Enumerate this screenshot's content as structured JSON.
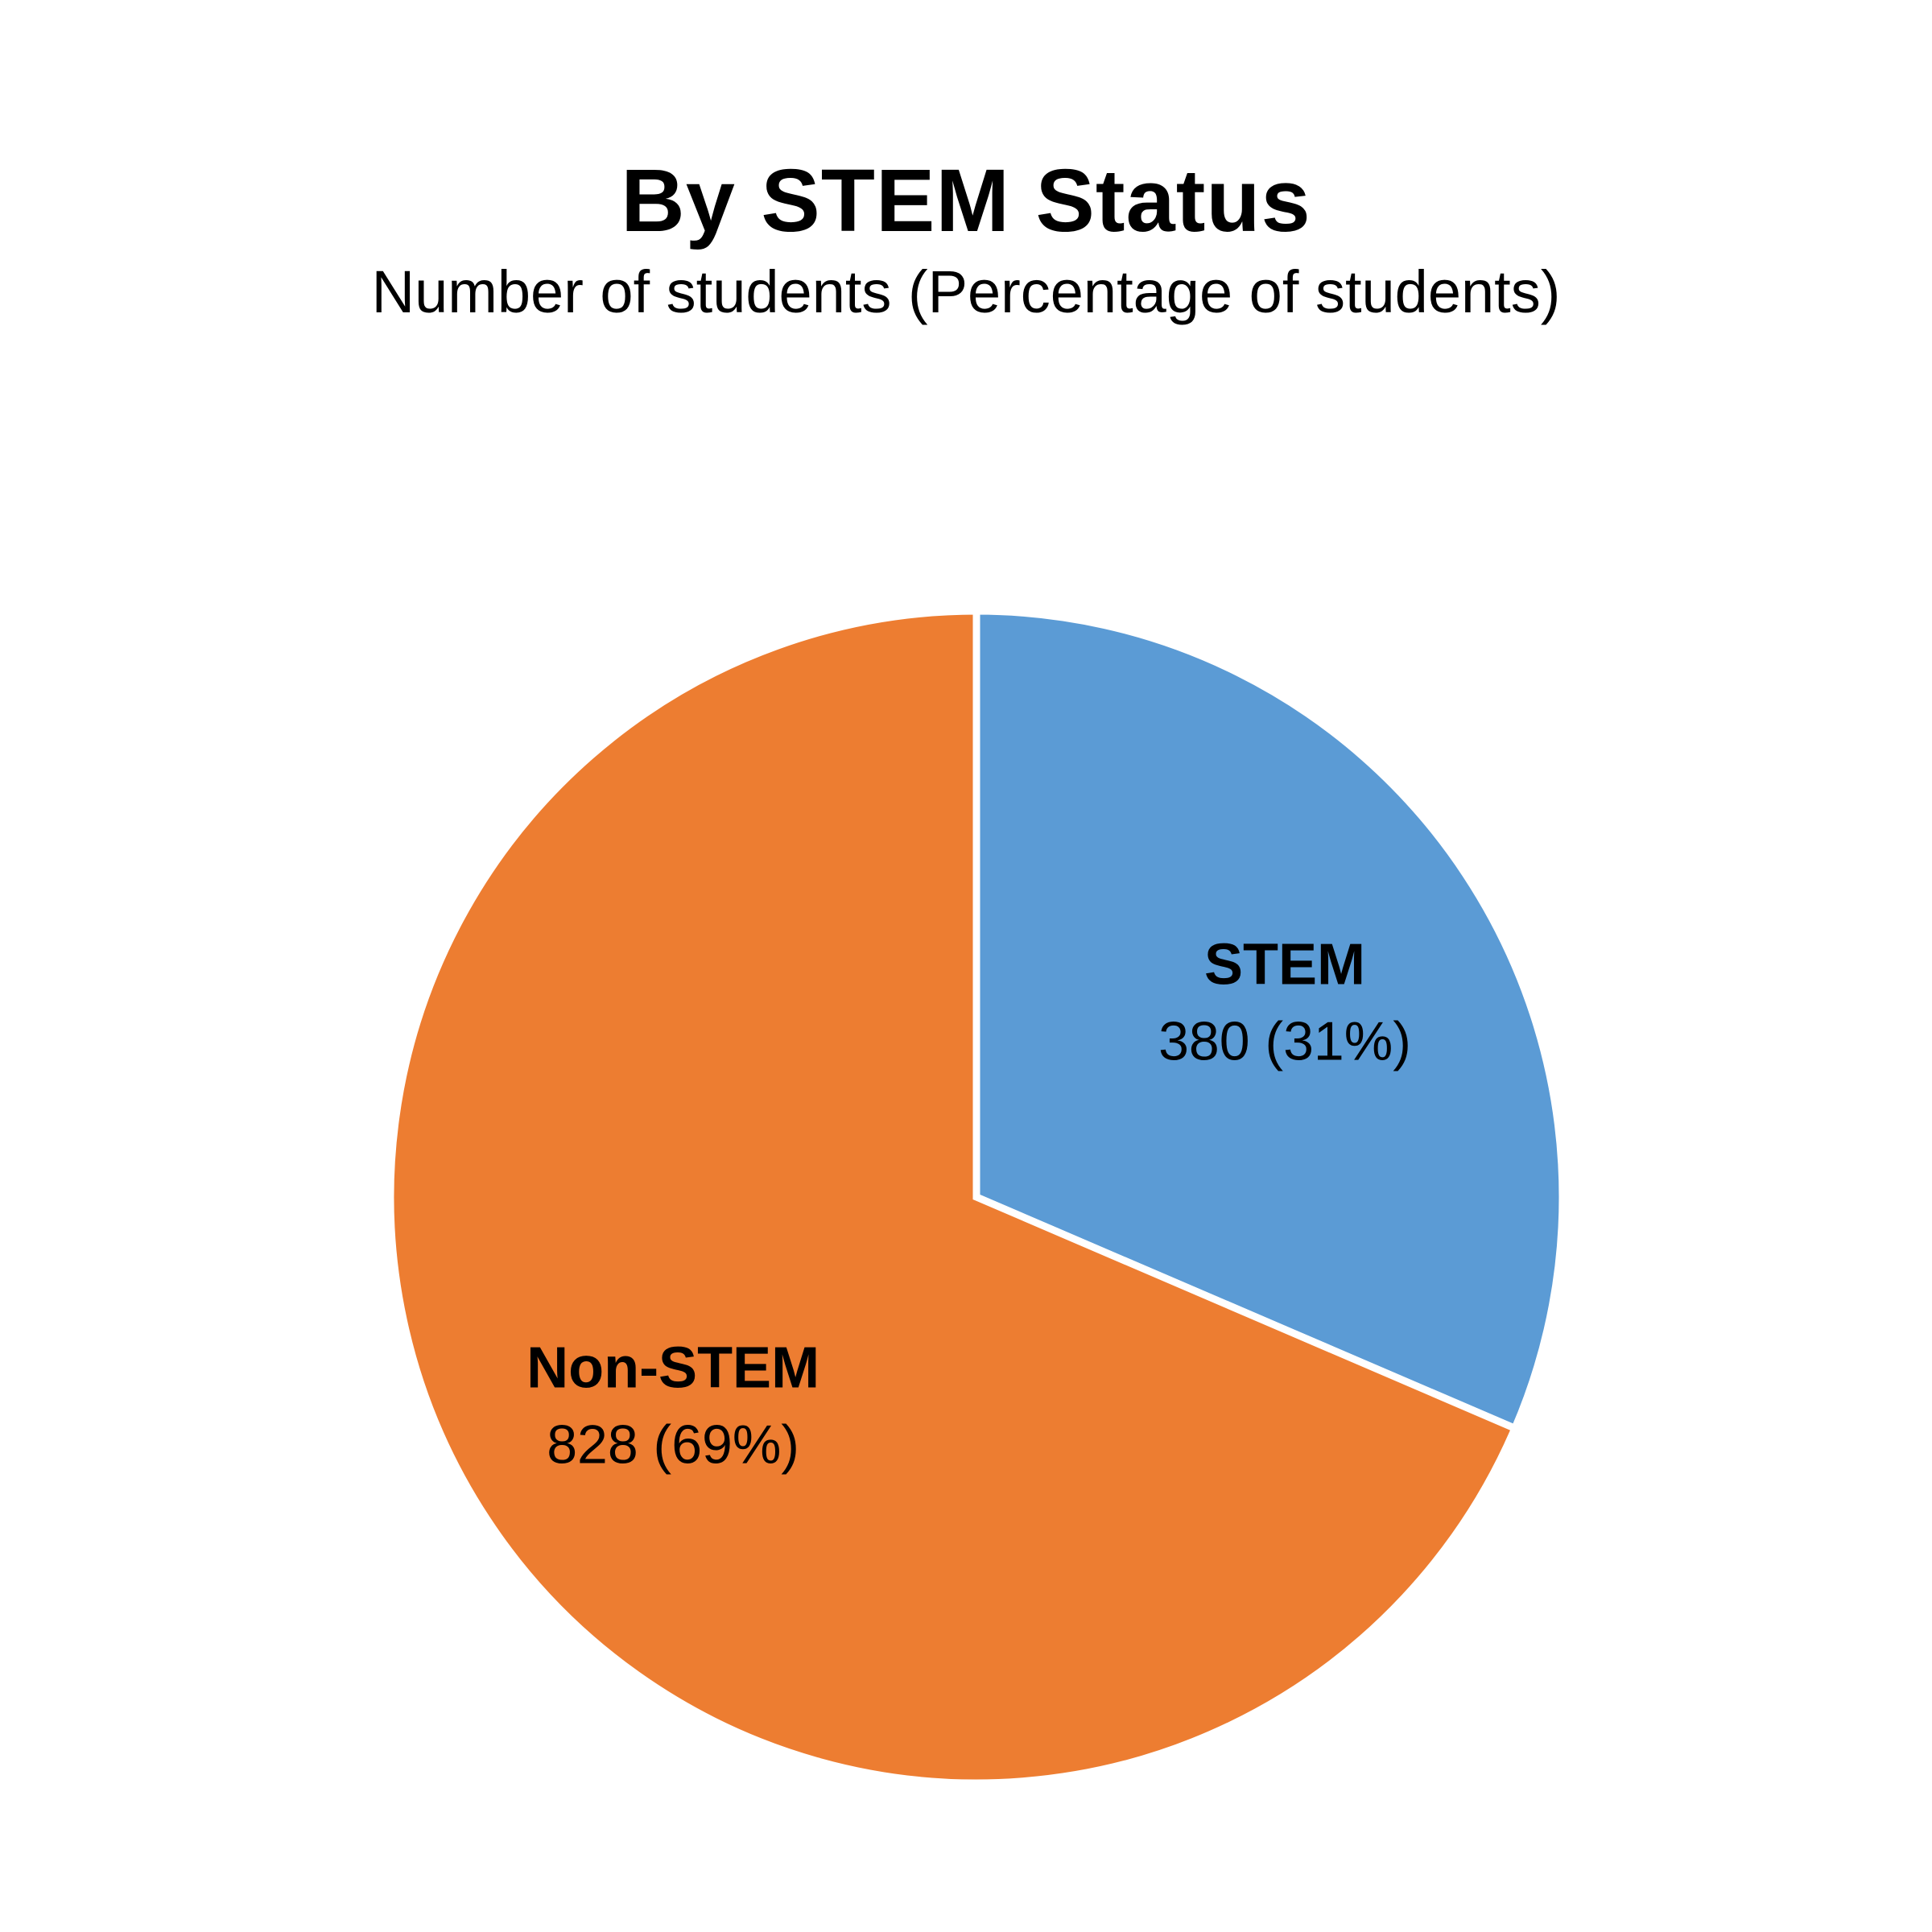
{
  "chart_data": {
    "type": "pie",
    "title": "By STEM Status",
    "subtitle": "Number of students (Percentage of students)",
    "slices": [
      {
        "name": "STEM",
        "value": 380,
        "percent": "31%",
        "label": "380 (31%)",
        "color": "#5B9BD5"
      },
      {
        "name": "Non-STEM",
        "value": 828,
        "percent": "69%",
        "label": "828 (69%)",
        "color": "#ED7D31"
      }
    ],
    "start_angle_deg": 0,
    "direction": "clockwise",
    "separator_color": "#FFFFFF",
    "legend": "none"
  }
}
